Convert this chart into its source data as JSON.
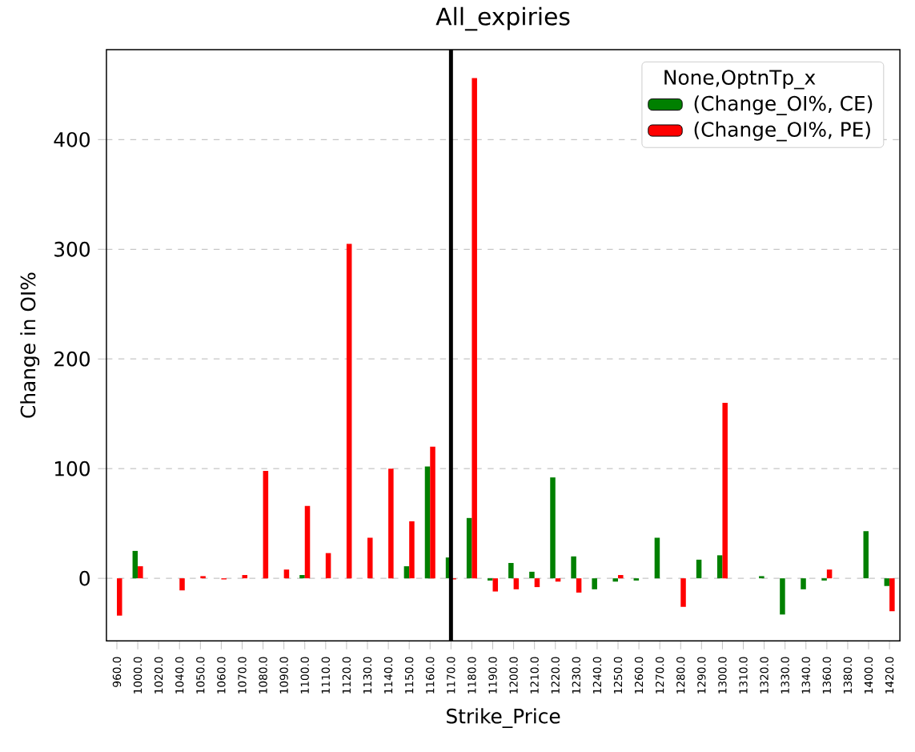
{
  "chart_data": {
    "type": "bar",
    "title": "All_expiries",
    "xlabel": "Strike_Price",
    "ylabel": "Change in OI%",
    "legend_title": "None,OptnTp_x",
    "categories": [
      "960.0",
      "1000.0",
      "1020.0",
      "1040.0",
      "1050.0",
      "1060.0",
      "1070.0",
      "1080.0",
      "1090.0",
      "1100.0",
      "1110.0",
      "1120.0",
      "1130.0",
      "1140.0",
      "1150.0",
      "1160.0",
      "1170.0",
      "1180.0",
      "1190.0",
      "1200.0",
      "1210.0",
      "1220.0",
      "1230.0",
      "1240.0",
      "1250.0",
      "1260.0",
      "1270.0",
      "1280.0",
      "1290.0",
      "1300.0",
      "1310.0",
      "1320.0",
      "1330.0",
      "1340.0",
      "1360.0",
      "1380.0",
      "1400.0",
      "1420.0"
    ],
    "series": [
      {
        "name": " (Change_OI%, CE)",
        "color": "#008000",
        "values": [
          null,
          25,
          null,
          null,
          null,
          null,
          null,
          null,
          null,
          3,
          null,
          null,
          null,
          null,
          11,
          102,
          19,
          55,
          -2,
          14,
          6,
          92,
          20,
          -10,
          -3,
          -2,
          37,
          null,
          17,
          21,
          null,
          2,
          -33,
          -10,
          -2,
          null,
          43,
          -7
        ]
      },
      {
        "name": " (Change_OI%, PE)",
        "color": "#ff0000",
        "values": [
          -34,
          11,
          null,
          -11,
          2,
          -1,
          3,
          98,
          8,
          66,
          23,
          305,
          37,
          100,
          52,
          120,
          -1,
          456,
          -12,
          -10,
          -8,
          -3,
          -13,
          null,
          3,
          null,
          null,
          -26,
          null,
          160,
          null,
          null,
          null,
          null,
          8,
          null,
          null,
          -30
        ]
      }
    ],
    "ylim": [
      -57,
      482
    ],
    "yticks": [
      0,
      100,
      200,
      300,
      400
    ],
    "grid": "y",
    "legend": "top right",
    "ref_lines": [
      {
        "axis": "x",
        "value": "1170.0",
        "color": "#000000"
      }
    ]
  }
}
